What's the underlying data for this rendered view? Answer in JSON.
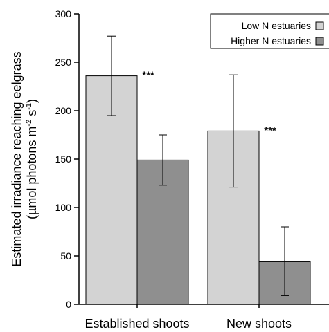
{
  "chart_data": {
    "type": "bar",
    "categories": [
      "Established shoots",
      "New shoots"
    ],
    "series": [
      {
        "name": "Low N estuaries",
        "values": [
          236,
          179
        ],
        "error_low": [
          195,
          121
        ],
        "error_high": [
          277,
          237
        ],
        "color": "#d3d3d3"
      },
      {
        "name": "Higher N estuaries",
        "values": [
          149,
          44
        ],
        "error_low": [
          123,
          9
        ],
        "error_high": [
          175,
          80
        ],
        "color": "#8f8f8f"
      }
    ],
    "significance": [
      "***",
      "***"
    ],
    "ylabel_line1": "Estimated irradiance reaching eelgrass",
    "ylabel_line2": "(µmol  photons m",
    "ylabel_sup1": "-2",
    "ylabel_mid": " s",
    "ylabel_sup2": "-1",
    "ylabel_end": ")",
    "yticks": [
      0,
      50,
      100,
      150,
      200,
      250,
      300
    ],
    "ylim": [
      0,
      300
    ],
    "grid": false,
    "legend_position": "top-right"
  }
}
